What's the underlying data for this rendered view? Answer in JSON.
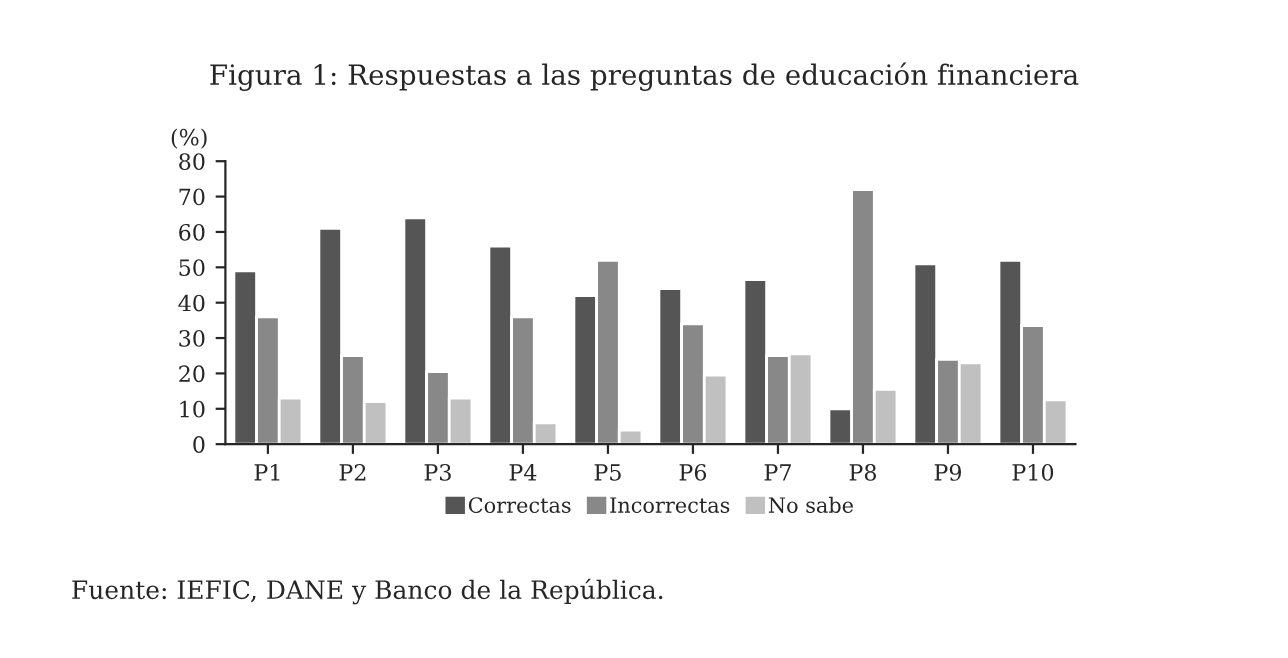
{
  "chart_data": {
    "type": "bar",
    "title": "Figura 1: Respuestas a las preguntas de educación financiera",
    "ylabel": "(%)",
    "categories": [
      "P1",
      "P2",
      "P3",
      "P4",
      "P5",
      "P6",
      "P7",
      "P8",
      "P9",
      "P10"
    ],
    "series": [
      {
        "name": "Correctas",
        "color": "#555555",
        "values": [
          49,
          61,
          64,
          56,
          42,
          44,
          46.5,
          10,
          51,
          52
        ]
      },
      {
        "name": "Incorrectas",
        "color": "#888888",
        "values": [
          36,
          25,
          20.5,
          36,
          52,
          34,
          25,
          72,
          24,
          33.5
        ]
      },
      {
        "name": "No sabe",
        "color": "#c0c0c0",
        "values": [
          13,
          12,
          13,
          6,
          4,
          19.5,
          25.5,
          15.5,
          23,
          12.5
        ]
      }
    ],
    "ylim": [
      0,
      80
    ],
    "yticks": [
      0,
      10,
      20,
      30,
      40,
      50,
      60,
      70,
      80
    ],
    "grid": false,
    "legend": "bottom",
    "annotations": [
      "Fuente: IEFIC, DANE y Banco de la República."
    ]
  }
}
